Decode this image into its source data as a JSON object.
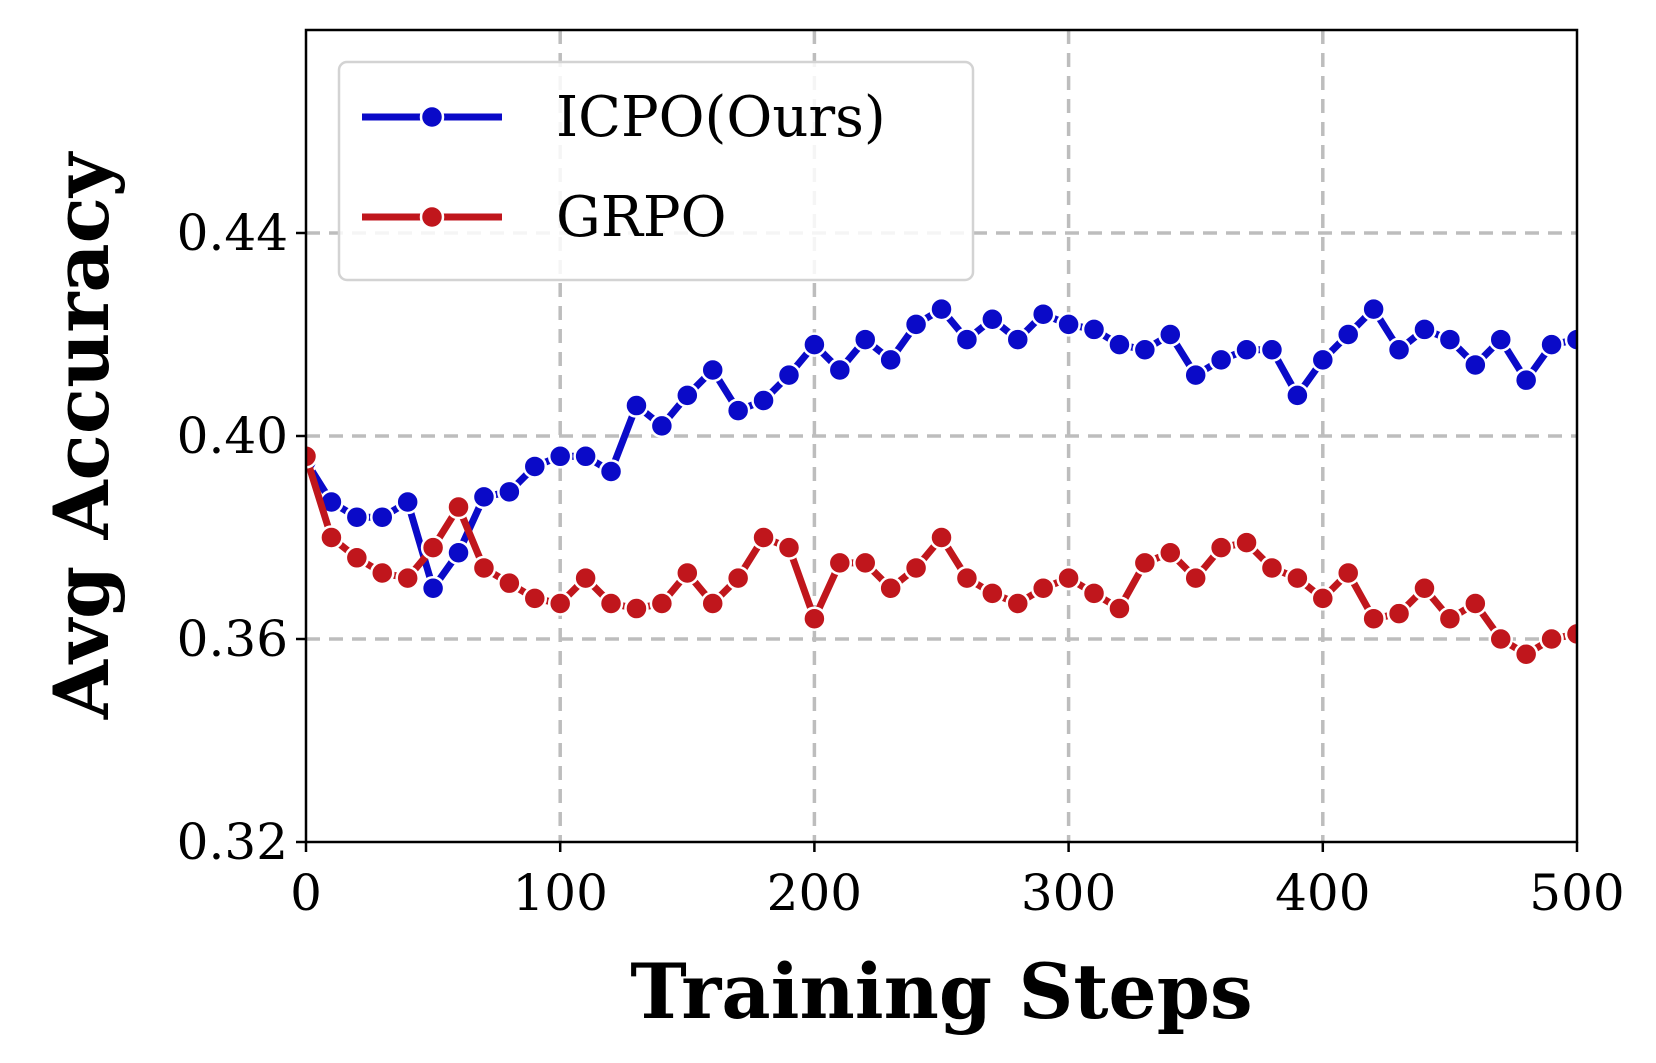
{
  "chart_data": {
    "type": "line",
    "title": "",
    "xlabel": "Training Steps",
    "ylabel": "Avg Accuracy",
    "xlim": [
      0,
      500
    ],
    "ylim": [
      0.32,
      0.48
    ],
    "xticks": [
      0,
      100,
      200,
      300,
      400,
      500
    ],
    "yticks": [
      0.32,
      0.36,
      0.4,
      0.44
    ],
    "xtick_labels": [
      "0",
      "100",
      "200",
      "300",
      "400",
      "500"
    ],
    "ytick_labels": [
      "0.32",
      "0.36",
      "0.40",
      "0.44"
    ],
    "grid": true,
    "legend_position": "top-left",
    "x": [
      0,
      10,
      20,
      30,
      40,
      50,
      60,
      70,
      80,
      90,
      100,
      110,
      120,
      130,
      140,
      150,
      160,
      170,
      180,
      190,
      200,
      210,
      220,
      230,
      240,
      250,
      260,
      270,
      280,
      290,
      300,
      310,
      320,
      330,
      340,
      350,
      360,
      370,
      380,
      390,
      400,
      410,
      420,
      430,
      440,
      450,
      460,
      470,
      480,
      490,
      500
    ],
    "series": [
      {
        "name": "ICPO(Ours)",
        "color": "#0a0ac8",
        "values": [
          0.395,
          0.387,
          0.384,
          0.384,
          0.387,
          0.37,
          0.377,
          0.388,
          0.389,
          0.394,
          0.396,
          0.396,
          0.393,
          0.406,
          0.402,
          0.408,
          0.413,
          0.405,
          0.407,
          0.412,
          0.418,
          0.413,
          0.419,
          0.415,
          0.422,
          0.425,
          0.419,
          0.423,
          0.419,
          0.424,
          0.422,
          0.421,
          0.418,
          0.417,
          0.42,
          0.412,
          0.415,
          0.417,
          0.417,
          0.408,
          0.415,
          0.42,
          0.425,
          0.417,
          0.421,
          0.419,
          0.414,
          0.419,
          0.411,
          0.418,
          0.419
        ]
      },
      {
        "name": "GRPO",
        "color": "#c0161c",
        "values": [
          0.396,
          0.38,
          0.376,
          0.373,
          0.372,
          0.378,
          0.386,
          0.374,
          0.371,
          0.368,
          0.367,
          0.372,
          0.367,
          0.366,
          0.367,
          0.373,
          0.367,
          0.372,
          0.38,
          0.378,
          0.364,
          0.375,
          0.375,
          0.37,
          0.374,
          0.38,
          0.372,
          0.369,
          0.367,
          0.37,
          0.372,
          0.369,
          0.366,
          0.375,
          0.377,
          0.372,
          0.378,
          0.379,
          0.374,
          0.372,
          0.368,
          0.373,
          0.364,
          0.365,
          0.37,
          0.364,
          0.367,
          0.36,
          0.357,
          0.36,
          0.361
        ]
      }
    ]
  }
}
